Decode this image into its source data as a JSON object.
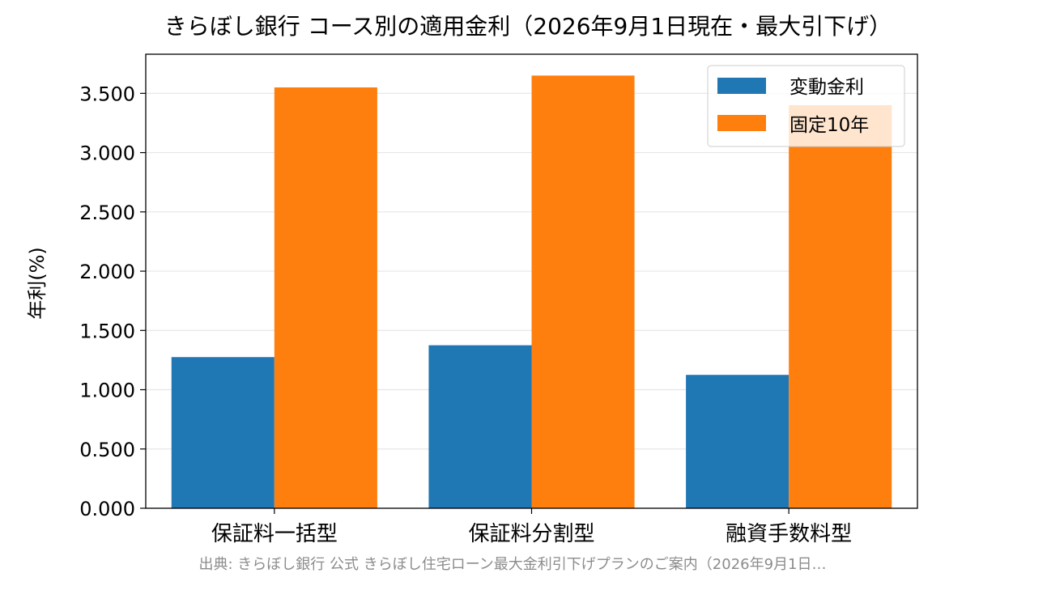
{
  "chart_data": {
    "type": "bar",
    "title": "きらぼし銀行 コース別の適用金利（2026年9月1日現在・最大引下げ）",
    "ylabel": "年利(%)",
    "xlabel": "",
    "categories": [
      "保証料一括型",
      "保証料分割型",
      "融資手数料型"
    ],
    "series": [
      {
        "name": "変動金利",
        "values": [
          1.275,
          1.375,
          1.125
        ],
        "color": "#1f77b4"
      },
      {
        "name": "固定10年",
        "values": [
          3.55,
          3.65,
          3.4
        ],
        "color": "#ff7f0e"
      }
    ],
    "ylim": [
      0,
      3.83
    ],
    "yticks": [
      "0.000",
      "0.500",
      "1.000",
      "1.500",
      "2.000",
      "2.500",
      "3.000",
      "3.500"
    ],
    "ytick_values": [
      0,
      0.5,
      1.0,
      1.5,
      2.0,
      2.5,
      3.0,
      3.5
    ],
    "grid": "horizontal",
    "legend_position": "upper right"
  },
  "source_note": "出典: きらぼし銀行 公式 きらぼし住宅ローン最大金利引下げプランのご案内（2026年9月1日…"
}
